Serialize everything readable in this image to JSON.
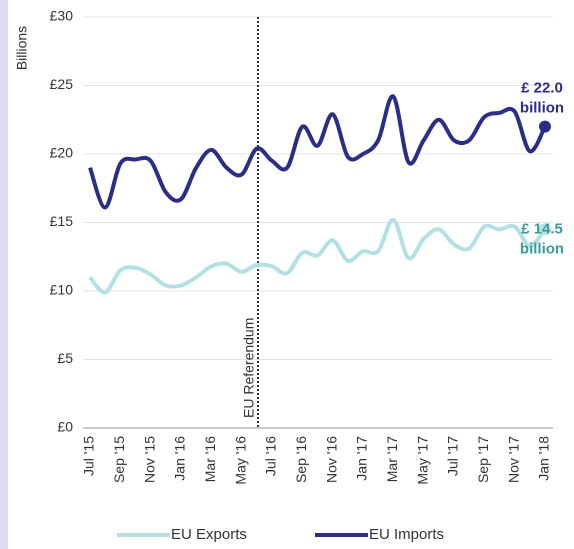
{
  "chart_data": {
    "type": "line",
    "y_label": "Billions",
    "categories": [
      "Jul '15",
      null,
      "Sep '15",
      null,
      "Nov '15",
      null,
      "Jan '16",
      null,
      "Mar '16",
      null,
      "May '16",
      null,
      "Jul '16",
      null,
      "Sep '16",
      null,
      "Nov '16",
      null,
      "Jan '17",
      null,
      "Mar '17",
      null,
      "May '17",
      null,
      "Jul '17",
      null,
      "Sep '17",
      null,
      "Nov '17",
      null,
      "Jan '18"
    ],
    "series": [
      {
        "name": "EU Exports",
        "color": "#b3e0e2",
        "label_color": "#3a9b9b",
        "end_label": [
          "£ 14.5",
          "billion"
        ],
        "values": [
          11.0,
          9.9,
          11.5,
          11.7,
          11.2,
          10.4,
          10.4,
          11.0,
          11.8,
          12.0,
          11.4,
          11.9,
          11.8,
          11.3,
          12.8,
          12.6,
          13.7,
          12.2,
          12.9,
          12.9,
          15.2,
          12.4,
          13.8,
          14.5,
          13.4,
          13.1,
          14.7,
          14.5,
          14.7,
          13.3,
          14.5
        ]
      },
      {
        "name": "EU Imports",
        "color": "#2b2d86",
        "label_color": "#2b2d86",
        "end_label": [
          "£ 22.0",
          "billion"
        ],
        "values": [
          19.0,
          16.1,
          19.3,
          19.6,
          19.5,
          17.2,
          16.7,
          19.0,
          20.3,
          19.0,
          18.5,
          20.4,
          19.5,
          19.0,
          22.0,
          20.6,
          22.9,
          19.8,
          20.0,
          21.0,
          24.2,
          19.4,
          21.0,
          22.5,
          21.0,
          21.0,
          22.7,
          23.0,
          23.1,
          20.2,
          22.0
        ]
      }
    ],
    "referendum_label": "EU Referendum",
    "ylim": [
      0,
      30
    ],
    "yticks": [
      {
        "value": 0,
        "label": "£0"
      },
      {
        "value": 5,
        "label": "£5"
      },
      {
        "value": 10,
        "label": "£10"
      },
      {
        "value": 15,
        "label": "£15"
      },
      {
        "value": 20,
        "label": "£20"
      },
      {
        "value": 25,
        "label": "£25"
      },
      {
        "value": 30,
        "label": "£30"
      }
    ],
    "grid": true
  }
}
